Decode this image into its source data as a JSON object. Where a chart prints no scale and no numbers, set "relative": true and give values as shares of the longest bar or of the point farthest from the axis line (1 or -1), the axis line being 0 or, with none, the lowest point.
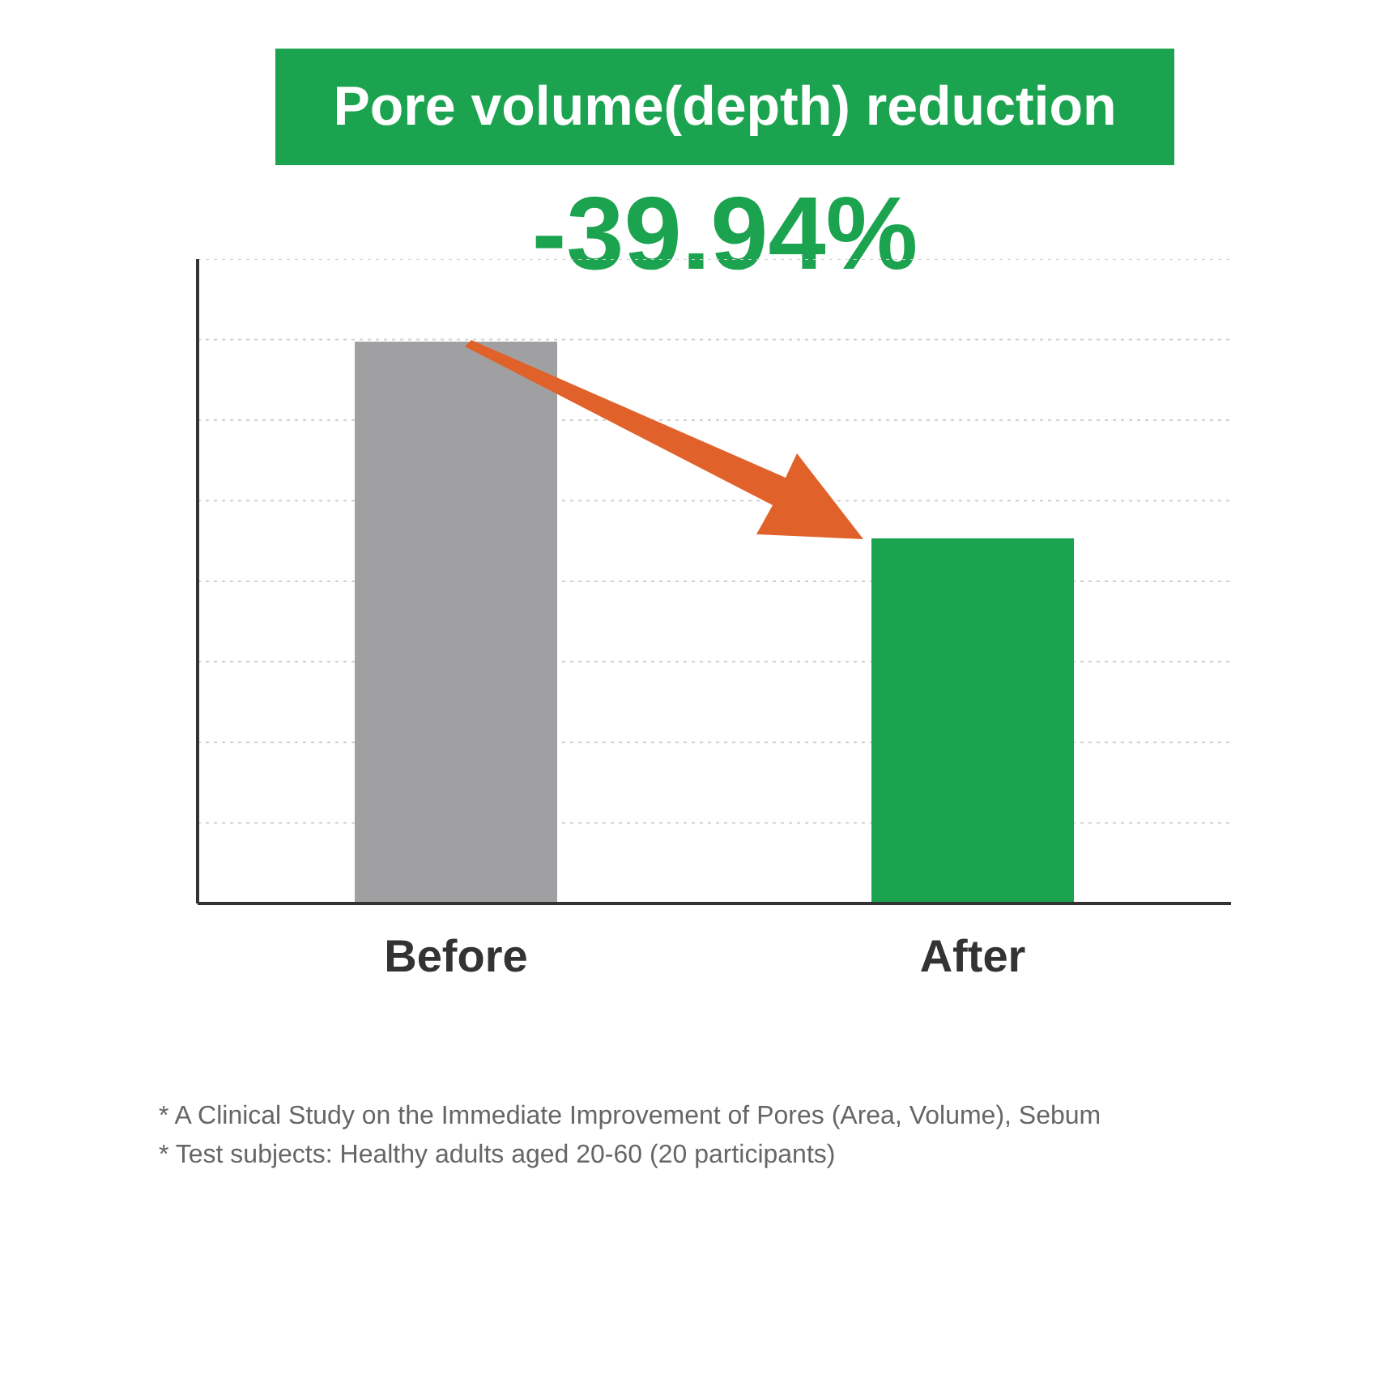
{
  "chart_data": {
    "type": "bar",
    "title": "Pore volume(depth) reduction",
    "subtitle": "-39.94%",
    "categories": [
      "Before",
      "After"
    ],
    "values": [
      1,
      0.65
    ],
    "colors": [
      "#a0a0a2",
      "#1ca34f"
    ],
    "relative": true,
    "grid": "y",
    "annotations": [
      "*  A Clinical Study on the Immediate Improvement of Pores (Area, Volume), Sebum",
      "*  Test subjects: Healthy adults aged 20-60 (20 participants)"
    ]
  }
}
